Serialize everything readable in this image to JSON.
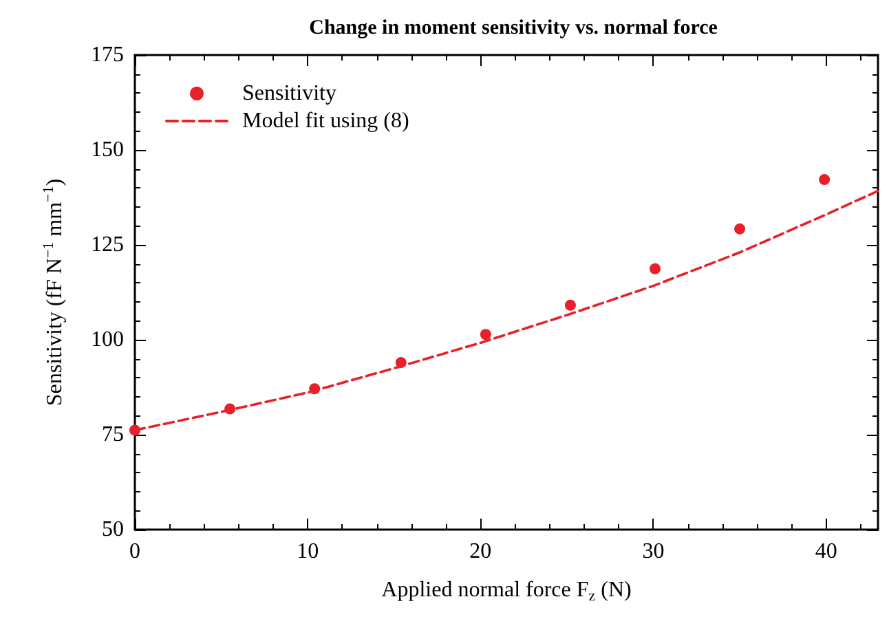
{
  "chart_data": {
    "type": "scatter",
    "title": "Change in moment sensitivity vs. normal force",
    "xlabel": "Applied normal force F$_{z}$ (N)",
    "ylabel": "Sensitivity (fF N$^{−1}$ mm$^{−1}$)",
    "xlim": [
      0,
      43
    ],
    "xticks": [
      0,
      10,
      20,
      30,
      40
    ],
    "ylim": [
      50,
      175
    ],
    "yticks": [
      50,
      75,
      100,
      125,
      150,
      175
    ],
    "grid": false,
    "legend": "top left",
    "series": [
      {
        "name": "Sensitivity",
        "marker": "circle",
        "color": "#e8202a",
        "x": [
          0,
          5.5,
          10.4,
          15.4,
          20.3,
          25.2,
          30.1,
          35.0,
          39.9
        ],
        "values": [
          76.2,
          81.8,
          87.1,
          94.0,
          101.4,
          109.1,
          118.7,
          129.2,
          142.2
        ]
      },
      {
        "name": "Model fit using (8)",
        "type": "line",
        "marker": "none",
        "line_style": "dashed",
        "color": "#e8202a",
        "x": [
          0,
          5,
          10,
          15,
          20,
          25,
          30,
          35,
          40,
          43
        ],
        "values": [
          76.2,
          81,
          86.1,
          92.5,
          99.2,
          106.5,
          114.2,
          123,
          133.0,
          139.2
        ]
      }
    ]
  }
}
